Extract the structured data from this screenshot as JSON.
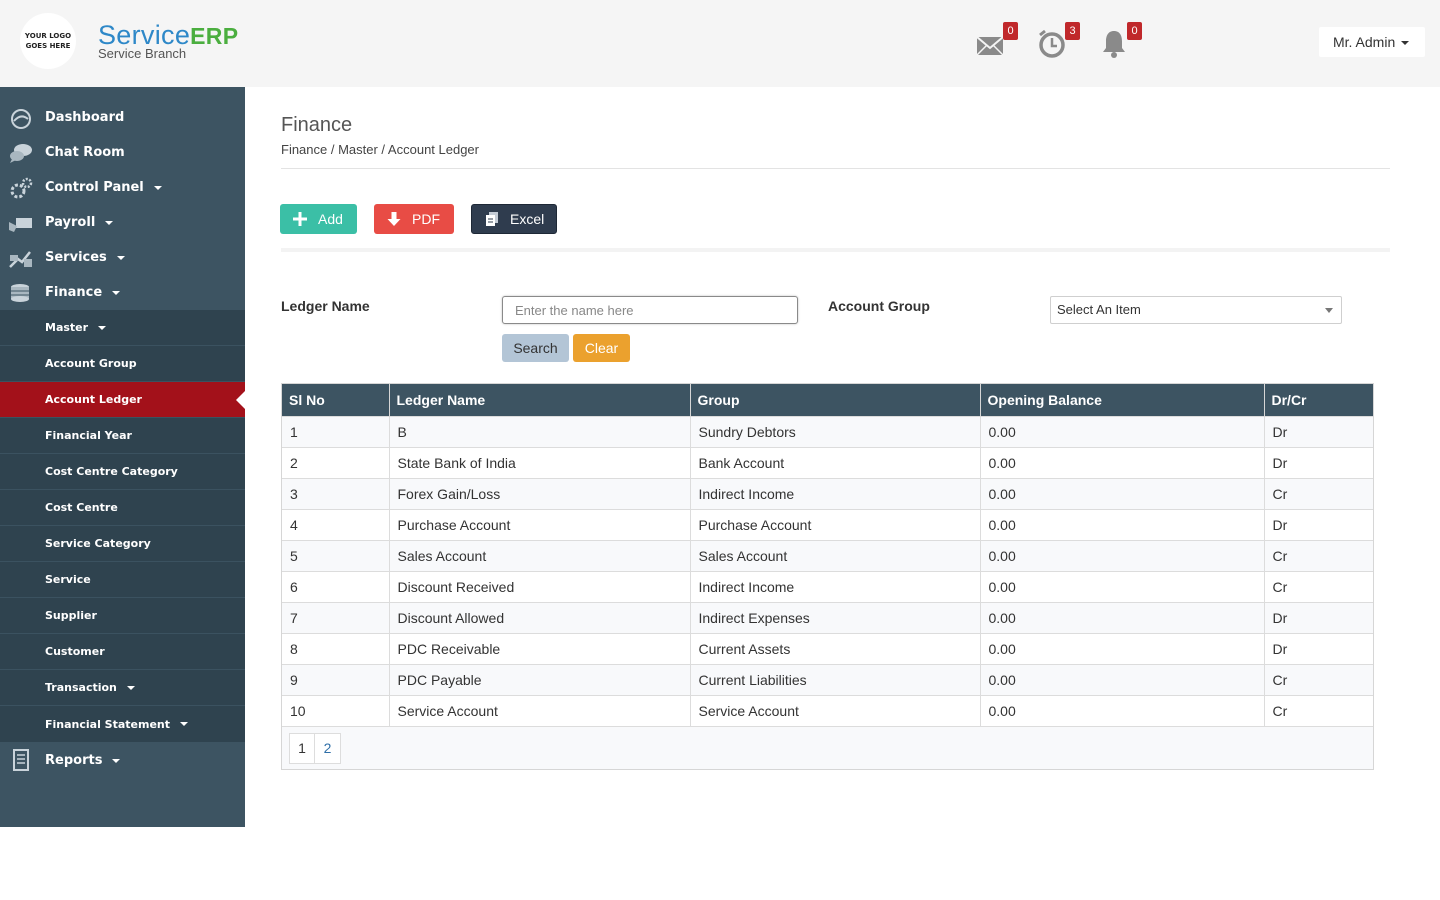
{
  "header": {
    "logo_text": [
      "YOUR LOGO",
      "GOES HERE"
    ],
    "brand_service": "Service",
    "brand_erp": "ERP",
    "brand_sub": "Service Branch",
    "notifications": [
      {
        "icon": "envelope-icon",
        "count": "0"
      },
      {
        "icon": "alarm-clock-icon",
        "count": "3"
      },
      {
        "icon": "bell-icon",
        "count": "0"
      }
    ],
    "user_label": "Mr. Admin"
  },
  "sidebar": {
    "items": [
      {
        "label": "Dashboard",
        "icon": "dashboard-icon",
        "has_caret": false
      },
      {
        "label": "Chat Room",
        "icon": "chat-icon",
        "has_caret": false
      },
      {
        "label": "Control Panel",
        "icon": "gears-icon",
        "has_caret": true
      },
      {
        "label": "Payroll",
        "icon": "payroll-icon",
        "has_caret": true
      },
      {
        "label": "Services",
        "icon": "services-icon",
        "has_caret": true
      },
      {
        "label": "Finance",
        "icon": "coins-icon",
        "has_caret": true
      }
    ],
    "finance_sub": [
      {
        "label": "Master",
        "has_caret": true
      },
      {
        "label": "Account Group"
      },
      {
        "label": "Account Ledger",
        "active": true
      },
      {
        "label": "Financial Year"
      },
      {
        "label": "Cost Centre Category"
      },
      {
        "label": "Cost Centre"
      },
      {
        "label": "Service Category"
      },
      {
        "label": "Service"
      },
      {
        "label": "Supplier"
      },
      {
        "label": "Customer"
      },
      {
        "label": "Transaction",
        "has_caret": true
      },
      {
        "label": "Financial Statement",
        "has_caret": true
      }
    ],
    "reports": {
      "label": "Reports",
      "icon": "reports-icon"
    }
  },
  "page": {
    "title": "Finance",
    "breadcrumb": "Finance / Master / Account Ledger"
  },
  "toolbar": {
    "add_label": "Add",
    "pdf_label": "PDF",
    "excel_label": "Excel"
  },
  "filters": {
    "ledger_label": "Ledger Name",
    "ledger_placeholder": "Enter the name here",
    "group_label": "Account Group",
    "group_selected": "Select An Item",
    "search_label": "Search",
    "clear_label": "Clear"
  },
  "table": {
    "columns": [
      "Sl No",
      "Ledger Name",
      "Group",
      "Opening Balance",
      "Dr/Cr"
    ],
    "rows": [
      [
        "1",
        "B",
        "Sundry Debtors",
        "0.00",
        "Dr"
      ],
      [
        "2",
        "State Bank of India",
        "Bank Account",
        "0.00",
        "Dr"
      ],
      [
        "3",
        "Forex Gain/Loss",
        "Indirect Income",
        "0.00",
        "Cr"
      ],
      [
        "4",
        "Purchase Account",
        "Purchase Account",
        "0.00",
        "Dr"
      ],
      [
        "5",
        "Sales Account",
        "Sales Account",
        "0.00",
        "Cr"
      ],
      [
        "6",
        "Discount Received",
        "Indirect Income",
        "0.00",
        "Cr"
      ],
      [
        "7",
        "Discount Allowed",
        "Indirect Expenses",
        "0.00",
        "Dr"
      ],
      [
        "8",
        "PDC Receivable",
        "Current Assets",
        "0.00",
        "Dr"
      ],
      [
        "9",
        "PDC Payable",
        "Current Liabilities",
        "0.00",
        "Cr"
      ],
      [
        "10",
        "Service Account",
        "Service Account",
        "0.00",
        "Cr"
      ]
    ],
    "pages": [
      "1",
      "2"
    ]
  },
  "colors": {
    "sidebar_bg": "#3d5462",
    "submenu_bg": "#2f434f",
    "active_bg": "#a3111a",
    "add_btn": "#3bbfa6",
    "pdf_btn": "#e84c45",
    "excel_btn": "#2f3c4e",
    "badge": "#c0282b"
  }
}
